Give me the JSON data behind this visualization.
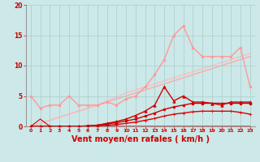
{
  "background_color": "#cce8e8",
  "grid_color": "#aacccc",
  "xlabel": "Vent moyen/en rafales ( km/h )",
  "xlabel_color": "#cc0000",
  "xlabel_fontsize": 7,
  "xtick_color": "#cc0000",
  "ytick_color": "#cc0000",
  "xlim": [
    -0.5,
    23.5
  ],
  "ylim": [
    0,
    20
  ],
  "yticks": [
    0,
    5,
    10,
    15,
    20
  ],
  "xticks": [
    0,
    1,
    2,
    3,
    4,
    5,
    6,
    7,
    8,
    9,
    10,
    11,
    12,
    13,
    14,
    15,
    16,
    17,
    18,
    19,
    20,
    21,
    22,
    23
  ],
  "series": [
    {
      "y": [
        0.0,
        0.5,
        1.0,
        1.5,
        2.0,
        2.5,
        3.0,
        3.5,
        4.0,
        4.5,
        5.0,
        5.5,
        6.0,
        6.5,
        7.0,
        7.5,
        8.0,
        8.5,
        9.0,
        9.5,
        10.0,
        10.5,
        11.0,
        11.5
      ],
      "color": "#ffaaaa",
      "linewidth": 1.0,
      "marker": null,
      "zorder": 1
    },
    {
      "y": [
        5.0,
        3.0,
        3.5,
        3.5,
        5.0,
        3.5,
        3.5,
        3.5,
        4.0,
        3.5,
        4.5,
        5.0,
        6.5,
        8.5,
        11.0,
        15.0,
        16.5,
        13.0,
        11.5,
        11.5,
        11.5,
        11.5,
        13.0,
        6.5
      ],
      "color": "#ff9999",
      "linewidth": 1.0,
      "marker": "o",
      "markersize": 2.0,
      "zorder": 2
    },
    {
      "y": [
        0.0,
        0.5,
        1.0,
        1.5,
        2.0,
        2.5,
        3.0,
        3.5,
        4.2,
        4.8,
        5.5,
        6.0,
        6.5,
        7.0,
        7.5,
        8.0,
        8.5,
        9.0,
        9.5,
        10.0,
        10.5,
        11.0,
        11.5,
        12.0
      ],
      "color": "#ffbbbb",
      "linewidth": 1.0,
      "marker": null,
      "zorder": 1
    },
    {
      "y": [
        0.0,
        1.2,
        0.0,
        0.0,
        0.0,
        0.0,
        0.0,
        0.0,
        0.0,
        0.0,
        0.0,
        0.0,
        0.0,
        0.0,
        0.0,
        0.0,
        0.0,
        0.0,
        0.0,
        0.0,
        0.0,
        0.0,
        0.0,
        0.0
      ],
      "color": "#cc0000",
      "linewidth": 0.8,
      "marker": null,
      "zorder": 3
    },
    {
      "y": [
        0.0,
        0.0,
        0.0,
        0.0,
        0.0,
        0.0,
        0.05,
        0.1,
        0.2,
        0.3,
        0.5,
        0.7,
        1.0,
        1.3,
        1.7,
        2.0,
        2.2,
        2.4,
        2.5,
        2.5,
        2.5,
        2.5,
        2.3,
        2.0
      ],
      "color": "#dd0000",
      "linewidth": 1.0,
      "marker": "+",
      "markersize": 2.5,
      "zorder": 4
    },
    {
      "y": [
        0.0,
        0.0,
        0.0,
        0.0,
        0.0,
        0.0,
        0.1,
        0.2,
        0.4,
        0.6,
        0.9,
        1.2,
        1.7,
        2.2,
        2.8,
        3.2,
        3.5,
        3.8,
        3.8,
        3.8,
        3.8,
        3.8,
        3.8,
        3.8
      ],
      "color": "#cc0000",
      "linewidth": 1.0,
      "marker": "o",
      "markersize": 2.0,
      "zorder": 4
    },
    {
      "y": [
        0.0,
        0.0,
        0.0,
        0.0,
        0.0,
        0.0,
        0.0,
        0.2,
        0.5,
        0.8,
        1.2,
        1.8,
        2.5,
        3.5,
        6.5,
        4.2,
        5.0,
        4.0,
        4.0,
        3.8,
        3.5,
        4.0,
        4.0,
        4.0
      ],
      "color": "#cc0000",
      "linewidth": 1.0,
      "marker": "^",
      "markersize": 2.5,
      "zorder": 5
    }
  ]
}
